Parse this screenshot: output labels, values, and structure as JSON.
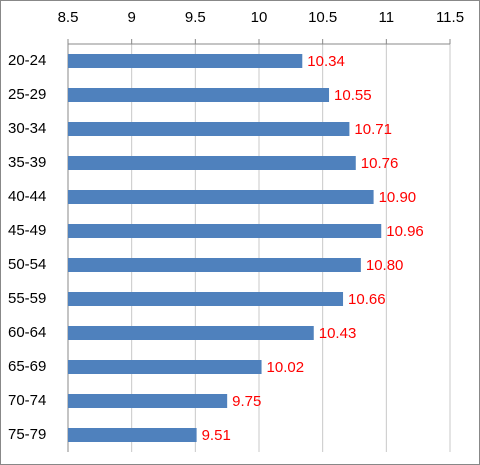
{
  "chart_data": {
    "type": "bar",
    "orientation": "horizontal",
    "categories": [
      "20-24",
      "25-29",
      "30-34",
      "35-39",
      "40-44",
      "45-49",
      "50-54",
      "55-59",
      "60-64",
      "65-69",
      "70-74",
      "75-79"
    ],
    "values": [
      10.34,
      10.55,
      10.71,
      10.76,
      10.9,
      10.96,
      10.8,
      10.66,
      10.43,
      10.02,
      9.75,
      9.51
    ],
    "value_labels": [
      "10.34",
      "10.55",
      "10.71",
      "10.76",
      "10.90",
      "10.96",
      "10.80",
      "10.66",
      "10.43",
      "10.02",
      "9.75",
      "9.51"
    ],
    "color": "#4f81bd",
    "label_color": "#ff0000",
    "xlim": [
      8.5,
      11.5
    ],
    "xticks": [
      8.5,
      9,
      9.5,
      10,
      10.5,
      11,
      11.5
    ],
    "grid": true
  }
}
